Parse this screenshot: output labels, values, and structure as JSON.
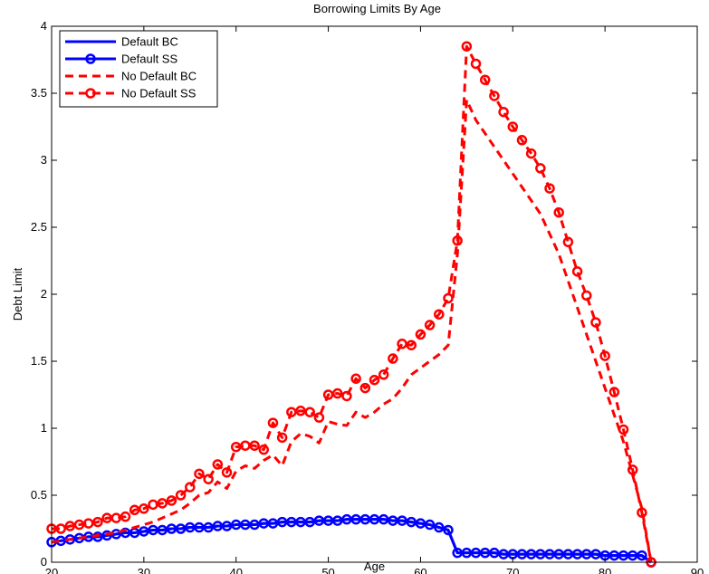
{
  "chart_data": {
    "type": "line",
    "title": "Borrowing Limits By Age",
    "xlabel": "Age",
    "ylabel": "Debt Limit",
    "xlim": [
      20,
      90
    ],
    "ylim": [
      0,
      4
    ],
    "x_ticks": [
      20,
      30,
      40,
      50,
      60,
      70,
      80,
      90
    ],
    "y_ticks": [
      0,
      0.5,
      1,
      1.5,
      2,
      2.5,
      3,
      3.5,
      4
    ],
    "x_tick_labels": [
      "20",
      "30",
      "40",
      "50",
      "60",
      "70",
      "80",
      "90"
    ],
    "y_tick_labels": [
      "0",
      "0.5",
      "1",
      "1.5",
      "2",
      "2.5",
      "3",
      "3.5",
      "4"
    ],
    "grid": false,
    "legend_position": "top-left",
    "series": [
      {
        "name": "Default BC",
        "color": "#0000ff",
        "style": "solid",
        "marker": "none",
        "x": [
          20,
          21,
          22,
          23,
          24,
          25,
          26,
          27,
          28,
          29,
          30,
          31,
          32,
          33,
          34,
          35,
          36,
          37,
          38,
          39,
          40,
          41,
          42,
          43,
          44,
          45,
          46,
          47,
          48,
          49,
          50,
          51,
          52,
          53,
          54,
          55,
          56,
          57,
          58,
          59,
          60,
          61,
          62,
          63,
          64,
          65,
          66,
          67,
          68,
          69,
          70,
          71,
          72,
          73,
          74,
          75,
          76,
          77,
          78,
          79,
          80,
          81,
          82,
          83,
          84,
          85
        ],
        "y": [
          0.15,
          0.16,
          0.17,
          0.18,
          0.19,
          0.19,
          0.2,
          0.21,
          0.22,
          0.22,
          0.23,
          0.24,
          0.24,
          0.25,
          0.25,
          0.26,
          0.26,
          0.26,
          0.27,
          0.27,
          0.28,
          0.28,
          0.28,
          0.29,
          0.29,
          0.3,
          0.3,
          0.3,
          0.3,
          0.31,
          0.31,
          0.31,
          0.32,
          0.32,
          0.32,
          0.32,
          0.32,
          0.31,
          0.31,
          0.3,
          0.29,
          0.28,
          0.26,
          0.24,
          0.07,
          0.07,
          0.07,
          0.07,
          0.07,
          0.06,
          0.06,
          0.06,
          0.06,
          0.06,
          0.06,
          0.06,
          0.06,
          0.06,
          0.06,
          0.06,
          0.05,
          0.05,
          0.05,
          0.05,
          0.05,
          0.0
        ]
      },
      {
        "name": "Default SS",
        "color": "#0000ff",
        "style": "solid",
        "marker": "circle",
        "x": [
          20,
          21,
          22,
          23,
          24,
          25,
          26,
          27,
          28,
          29,
          30,
          31,
          32,
          33,
          34,
          35,
          36,
          37,
          38,
          39,
          40,
          41,
          42,
          43,
          44,
          45,
          46,
          47,
          48,
          49,
          50,
          51,
          52,
          53,
          54,
          55,
          56,
          57,
          58,
          59,
          60,
          61,
          62,
          63,
          64,
          65,
          66,
          67,
          68,
          69,
          70,
          71,
          72,
          73,
          74,
          75,
          76,
          77,
          78,
          79,
          80,
          81,
          82,
          83,
          84,
          85
        ],
        "y": [
          0.15,
          0.16,
          0.17,
          0.18,
          0.19,
          0.19,
          0.2,
          0.21,
          0.22,
          0.22,
          0.23,
          0.24,
          0.24,
          0.25,
          0.25,
          0.26,
          0.26,
          0.26,
          0.27,
          0.27,
          0.28,
          0.28,
          0.28,
          0.29,
          0.29,
          0.3,
          0.3,
          0.3,
          0.3,
          0.31,
          0.31,
          0.31,
          0.32,
          0.32,
          0.32,
          0.32,
          0.32,
          0.31,
          0.31,
          0.3,
          0.29,
          0.28,
          0.26,
          0.24,
          0.07,
          0.07,
          0.07,
          0.07,
          0.07,
          0.06,
          0.06,
          0.06,
          0.06,
          0.06,
          0.06,
          0.06,
          0.06,
          0.06,
          0.06,
          0.06,
          0.05,
          0.05,
          0.05,
          0.05,
          0.05,
          0.0
        ]
      },
      {
        "name": "No Default BC",
        "color": "#ff0000",
        "style": "dashed",
        "marker": "none",
        "x": [
          20,
          21,
          22,
          23,
          24,
          25,
          26,
          27,
          28,
          29,
          30,
          31,
          32,
          33,
          34,
          35,
          36,
          37,
          38,
          39,
          40,
          41,
          42,
          43,
          44,
          45,
          46,
          47,
          48,
          49,
          50,
          51,
          52,
          53,
          54,
          55,
          56,
          57,
          58,
          59,
          60,
          61,
          62,
          63,
          64,
          65,
          66,
          67,
          68,
          69,
          70,
          71,
          72,
          73,
          74,
          75,
          76,
          77,
          78,
          79,
          80,
          81,
          82,
          83,
          84,
          85
        ],
        "y": [
          0.15,
          0.16,
          0.17,
          0.18,
          0.19,
          0.2,
          0.21,
          0.22,
          0.24,
          0.26,
          0.28,
          0.3,
          0.33,
          0.36,
          0.39,
          0.44,
          0.5,
          0.52,
          0.6,
          0.55,
          0.68,
          0.72,
          0.7,
          0.76,
          0.8,
          0.72,
          0.9,
          0.96,
          0.94,
          0.89,
          1.05,
          1.03,
          1.02,
          1.12,
          1.08,
          1.12,
          1.18,
          1.22,
          1.3,
          1.4,
          1.45,
          1.5,
          1.55,
          1.62,
          2.3,
          3.45,
          3.3,
          3.2,
          3.1,
          3.0,
          2.9,
          2.8,
          2.7,
          2.6,
          2.45,
          2.3,
          2.1,
          1.9,
          1.7,
          1.5,
          1.3,
          1.1,
          0.9,
          0.65,
          0.4,
          0.0
        ]
      },
      {
        "name": "No Default SS",
        "color": "#ff0000",
        "style": "dashed",
        "marker": "circle",
        "x": [
          20,
          21,
          22,
          23,
          24,
          25,
          26,
          27,
          28,
          29,
          30,
          31,
          32,
          33,
          34,
          35,
          36,
          37,
          38,
          39,
          40,
          41,
          42,
          43,
          44,
          45,
          46,
          47,
          48,
          49,
          50,
          51,
          52,
          53,
          54,
          55,
          56,
          57,
          58,
          59,
          60,
          61,
          62,
          63,
          64,
          65,
          66,
          67,
          68,
          69,
          70,
          71,
          72,
          73,
          74,
          75,
          76,
          77,
          78,
          79,
          80,
          81,
          82,
          83,
          84,
          85
        ],
        "y": [
          0.25,
          0.25,
          0.27,
          0.28,
          0.29,
          0.3,
          0.33,
          0.33,
          0.34,
          0.39,
          0.4,
          0.43,
          0.44,
          0.46,
          0.5,
          0.56,
          0.66,
          0.62,
          0.73,
          0.67,
          0.86,
          0.87,
          0.87,
          0.84,
          1.04,
          0.93,
          1.12,
          1.13,
          1.12,
          1.08,
          1.25,
          1.26,
          1.24,
          1.37,
          1.3,
          1.36,
          1.4,
          1.52,
          1.63,
          1.62,
          1.7,
          1.77,
          1.85,
          1.97,
          2.4,
          3.85,
          3.72,
          3.6,
          3.48,
          3.36,
          3.25,
          3.15,
          3.05,
          2.94,
          2.79,
          2.61,
          2.39,
          2.17,
          1.99,
          1.79,
          1.54,
          1.27,
          0.99,
          0.69,
          0.37,
          0.0
        ]
      }
    ]
  }
}
